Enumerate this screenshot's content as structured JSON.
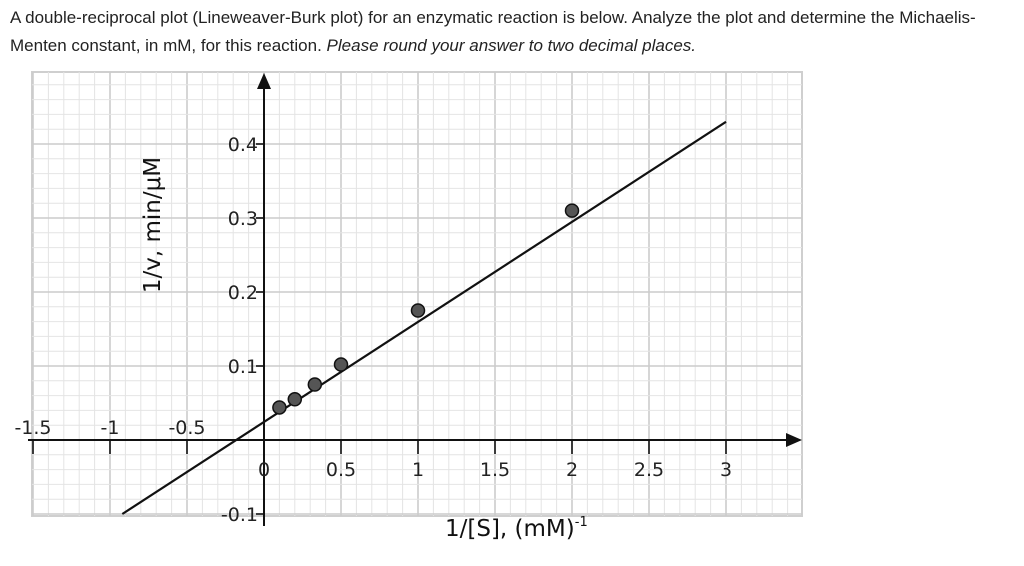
{
  "question": {
    "text": "A double-reciprocal plot (Lineweaver-Burk plot) for an enzymatic reaction is below. Analyze the plot and determine the Michaelis-Menten constant, in mM, for this reaction.",
    "note": "Please round your answer to two decimal places."
  },
  "chart_data": {
    "type": "scatter",
    "title": "",
    "xlabel": "1/[S], (mM)",
    "xlabel_superscript": "-1",
    "ylabel": "1/v, min/μM",
    "xlim": [
      -1.5,
      3.5
    ],
    "ylim": [
      -0.125,
      0.5
    ],
    "grid": true,
    "x_ticks": [
      {
        "value": -1.5,
        "label": "-1.5"
      },
      {
        "value": -1,
        "label": "-1"
      },
      {
        "value": -0.5,
        "label": "-0.5"
      },
      {
        "value": 0,
        "label": "0"
      },
      {
        "value": 0.5,
        "label": "0.5"
      },
      {
        "value": 1,
        "label": "1"
      },
      {
        "value": 1.5,
        "label": "1.5"
      },
      {
        "value": 2,
        "label": "2"
      },
      {
        "value": 2.5,
        "label": "2.5"
      },
      {
        "value": 3,
        "label": "3"
      }
    ],
    "y_ticks": [
      {
        "value": 0.4,
        "label": "0.4"
      },
      {
        "value": 0.3,
        "label": "0.3"
      },
      {
        "value": 0.2,
        "label": "0.2"
      },
      {
        "value": 0.1,
        "label": "0.1"
      },
      {
        "value": -0.1,
        "label": "-0.1"
      }
    ],
    "points": [
      {
        "x": 0.1,
        "y": 0.044
      },
      {
        "x": 0.2,
        "y": 0.055
      },
      {
        "x": 0.33,
        "y": 0.075
      },
      {
        "x": 0.5,
        "y": 0.102
      },
      {
        "x": 1.0,
        "y": 0.175
      },
      {
        "x": 2.0,
        "y": 0.31
      }
    ],
    "line": {
      "x": [
        -0.92,
        3.0
      ],
      "y": [
        -0.1,
        0.43
      ]
    }
  }
}
